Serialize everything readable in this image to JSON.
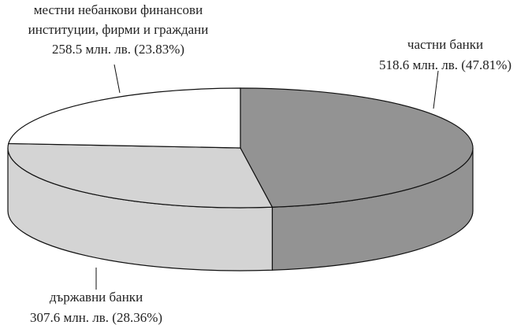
{
  "chart_data": {
    "type": "pie3d",
    "categories": [
      "частни банки",
      "държавни банки",
      "местни небанкови финансови\nинституции, фирми и граждани"
    ],
    "values": [
      518.6,
      307.6,
      258.5
    ],
    "value_labels": [
      "518.6 млн. лв. (47.81%)",
      "307.6 млн. лв. (28.36%)",
      "258.5 млн. лв. (23.83%)"
    ],
    "colors": [
      "#939393",
      "#d4d4d4",
      "#ffffff"
    ]
  }
}
